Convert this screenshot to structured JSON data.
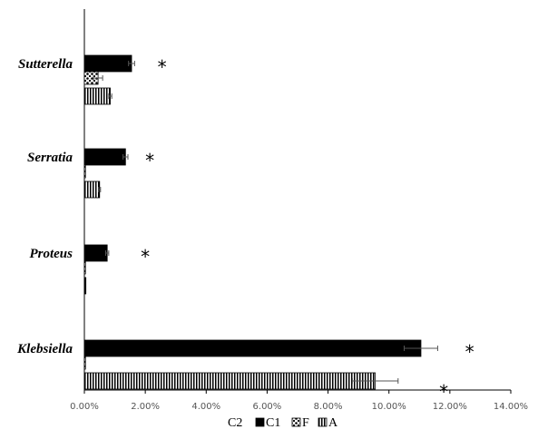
{
  "chart_data": {
    "type": "bar",
    "orientation": "horizontal",
    "categories": [
      "Sutterella",
      "Serratia",
      "Proteus",
      "Klebsiella"
    ],
    "series": [
      {
        "name": "C2",
        "values": [
          0.0,
          0.0,
          0.0,
          0.0
        ],
        "errors": [
          0,
          0,
          0,
          0
        ],
        "color": "#ffffff",
        "pattern": "none"
      },
      {
        "name": "C1",
        "values": [
          1.55,
          1.35,
          0.75,
          11.05
        ],
        "errors": [
          0.1,
          0.08,
          0.05,
          0.55
        ],
        "color": "#000000",
        "pattern": "solid"
      },
      {
        "name": "F",
        "values": [
          0.45,
          0.03,
          0.02,
          0.03
        ],
        "errors": [
          0.15,
          0,
          0,
          0
        ],
        "color": "#000000",
        "pattern": "dots"
      },
      {
        "name": "A",
        "values": [
          0.85,
          0.5,
          0.05,
          9.55
        ],
        "errors": [
          0.05,
          0.03,
          0,
          0.75
        ],
        "color": "#000000",
        "pattern": "vertical-stripes"
      }
    ],
    "xlim": [
      0,
      14
    ],
    "x_ticks": [
      0,
      2,
      4,
      6,
      8,
      10,
      12,
      14
    ],
    "x_tick_labels": [
      "0.00%",
      "2.00%",
      "4.00%",
      "6.00%",
      "8.00%",
      "10.00%",
      "12.00%",
      "14.00%"
    ],
    "significance": [
      {
        "category": "Sutterella",
        "series": "C1",
        "x": 2.55,
        "label": "*"
      },
      {
        "category": "Serratia",
        "series": "C1",
        "x": 2.15,
        "label": "*"
      },
      {
        "category": "Proteus",
        "series": "C1",
        "x": 2.0,
        "label": "*"
      },
      {
        "category": "Klebsiella",
        "series": "C1",
        "x": 12.65,
        "label": "*"
      },
      {
        "category": "Klebsiella",
        "series": "A",
        "x": 11.8,
        "label": "*"
      }
    ],
    "legend_placement": "bottom",
    "grid": false,
    "title": "",
    "xlabel": "",
    "ylabel": ""
  }
}
